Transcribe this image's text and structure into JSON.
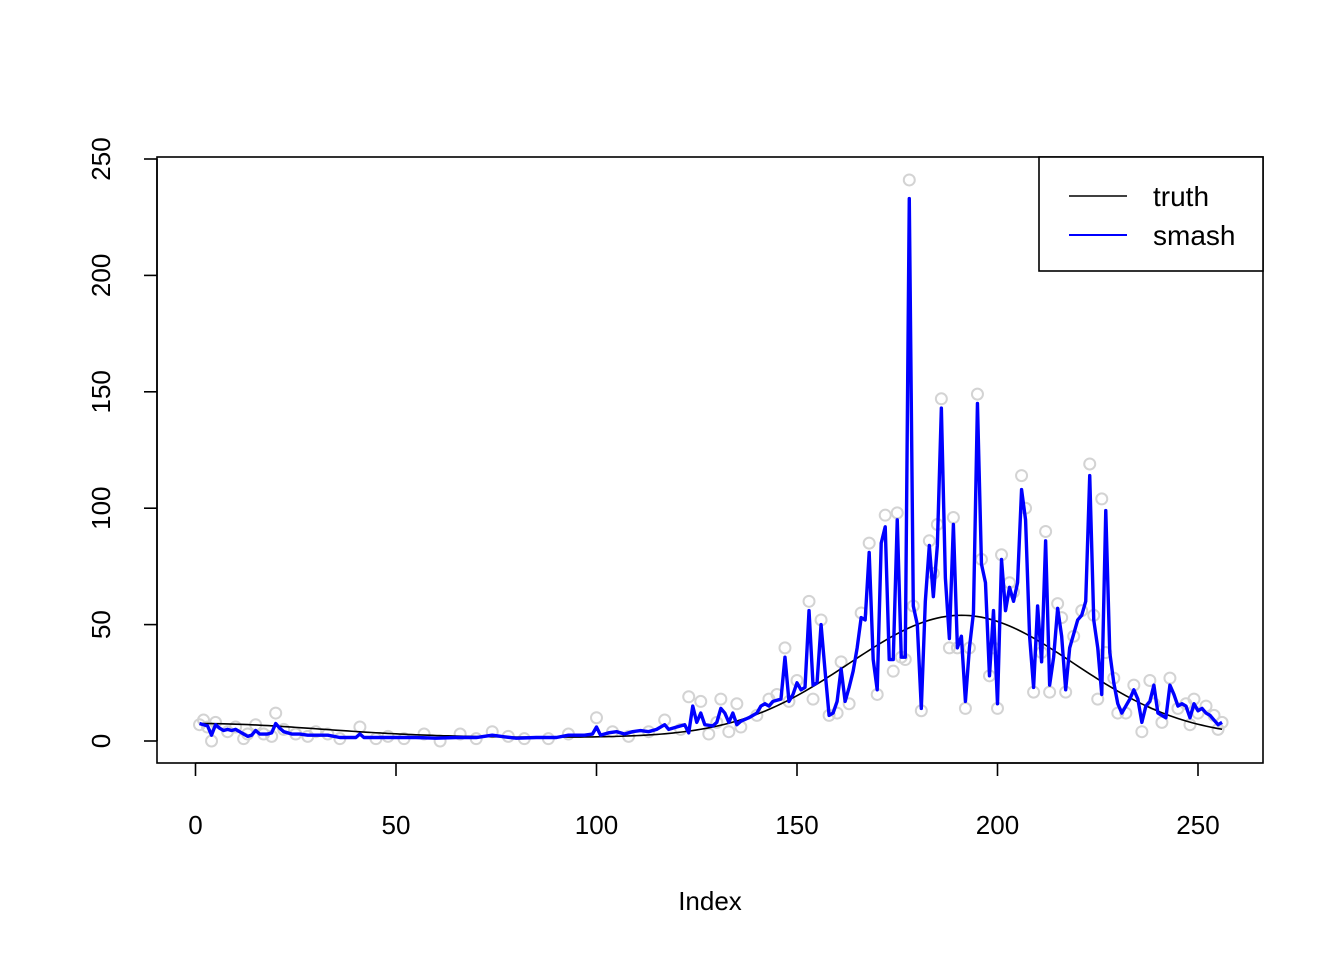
{
  "chart_data": {
    "type": "line",
    "title": "",
    "xlabel": "Index",
    "ylabel": "",
    "xlim": [
      1,
      256
    ],
    "ylim": [
      0,
      250
    ],
    "x_ticks": [
      0,
      50,
      100,
      150,
      200,
      250
    ],
    "y_ticks": [
      0,
      50,
      100,
      150,
      200,
      250
    ],
    "grid": false,
    "legend": {
      "position": "top-right",
      "entries": [
        {
          "label": "truth",
          "color": "#000000"
        },
        {
          "label": "smash",
          "color": "#0000ff"
        }
      ]
    },
    "truth": {
      "type": "gaussian-bump",
      "baseline_start": 7.5,
      "minimum_value": 1.5,
      "minimum_at": 80,
      "peak_value": 54,
      "peak_at": 191,
      "end_value": 8
    },
    "points_color": "#d3d3d3",
    "observed_points": [
      [
        1,
        7
      ],
      [
        2,
        9
      ],
      [
        3,
        6
      ],
      [
        4,
        0
      ],
      [
        5,
        8
      ],
      [
        8,
        4
      ],
      [
        10,
        6
      ],
      [
        12,
        1
      ],
      [
        13,
        3
      ],
      [
        15,
        7
      ],
      [
        17,
        3
      ],
      [
        19,
        2
      ],
      [
        20,
        12
      ],
      [
        22,
        5
      ],
      [
        25,
        3
      ],
      [
        28,
        2
      ],
      [
        30,
        4
      ],
      [
        33,
        3
      ],
      [
        36,
        1
      ],
      [
        41,
        6
      ],
      [
        45,
        1
      ],
      [
        48,
        2
      ],
      [
        52,
        1
      ],
      [
        57,
        3
      ],
      [
        61,
        0
      ],
      [
        66,
        3
      ],
      [
        70,
        1
      ],
      [
        74,
        4
      ],
      [
        78,
        2
      ],
      [
        82,
        1
      ],
      [
        88,
        1
      ],
      [
        93,
        3
      ],
      [
        100,
        10
      ],
      [
        104,
        4
      ],
      [
        108,
        2
      ],
      [
        113,
        4
      ],
      [
        117,
        9
      ],
      [
        121,
        5
      ],
      [
        123,
        19
      ],
      [
        126,
        17
      ],
      [
        128,
        3
      ],
      [
        130,
        8
      ],
      [
        131,
        18
      ],
      [
        133,
        4
      ],
      [
        135,
        16
      ],
      [
        136,
        6
      ],
      [
        140,
        11
      ],
      [
        143,
        18
      ],
      [
        145,
        20
      ],
      [
        147,
        40
      ],
      [
        148,
        17
      ],
      [
        150,
        26
      ],
      [
        153,
        60
      ],
      [
        154,
        18
      ],
      [
        156,
        52
      ],
      [
        158,
        11
      ],
      [
        160,
        12
      ],
      [
        161,
        34
      ],
      [
        163,
        16
      ],
      [
        166,
        55
      ],
      [
        168,
        85
      ],
      [
        170,
        20
      ],
      [
        172,
        97
      ],
      [
        174,
        30
      ],
      [
        175,
        98
      ],
      [
        176,
        36
      ],
      [
        177,
        35
      ],
      [
        178,
        241
      ],
      [
        179,
        58
      ],
      [
        181,
        13
      ],
      [
        183,
        86
      ],
      [
        184,
        72
      ],
      [
        185,
        93
      ],
      [
        186,
        147
      ],
      [
        188,
        40
      ],
      [
        189,
        96
      ],
      [
        190,
        40
      ],
      [
        192,
        14
      ],
      [
        193,
        40
      ],
      [
        195,
        149
      ],
      [
        196,
        78
      ],
      [
        198,
        28
      ],
      [
        199,
        40
      ],
      [
        200,
        14
      ],
      [
        201,
        80
      ],
      [
        203,
        68
      ],
      [
        204,
        64
      ],
      [
        206,
        114
      ],
      [
        207,
        100
      ],
      [
        209,
        21
      ],
      [
        211,
        38
      ],
      [
        212,
        90
      ],
      [
        213,
        21
      ],
      [
        215,
        59
      ],
      [
        216,
        53
      ],
      [
        217,
        21
      ],
      [
        219,
        45
      ],
      [
        221,
        56
      ],
      [
        223,
        119
      ],
      [
        224,
        54
      ],
      [
        225,
        18
      ],
      [
        226,
        104
      ],
      [
        227,
        38
      ],
      [
        229,
        27
      ],
      [
        230,
        12
      ],
      [
        232,
        12
      ],
      [
        234,
        24
      ],
      [
        236,
        4
      ],
      [
        238,
        26
      ],
      [
        239,
        16
      ],
      [
        241,
        8
      ],
      [
        243,
        27
      ],
      [
        245,
        14
      ],
      [
        247,
        16
      ],
      [
        248,
        7
      ],
      [
        249,
        18
      ],
      [
        250,
        12
      ],
      [
        252,
        15
      ],
      [
        254,
        11
      ],
      [
        255,
        5
      ],
      [
        256,
        8
      ]
    ],
    "smash_series": [
      [
        1,
        7.5
      ],
      [
        2,
        7
      ],
      [
        3,
        6.5
      ],
      [
        4,
        2.5
      ],
      [
        5,
        7
      ],
      [
        6,
        5.5
      ],
      [
        7,
        4.5
      ],
      [
        8,
        5
      ],
      [
        9,
        4.5
      ],
      [
        10,
        5
      ],
      [
        11,
        4
      ],
      [
        12,
        3
      ],
      [
        13,
        2
      ],
      [
        14,
        2.5
      ],
      [
        15,
        4.5
      ],
      [
        16,
        3
      ],
      [
        17,
        3
      ],
      [
        18,
        3
      ],
      [
        19,
        3.5
      ],
      [
        20,
        7.5
      ],
      [
        21,
        5.5
      ],
      [
        22,
        4
      ],
      [
        24,
        3
      ],
      [
        26,
        3
      ],
      [
        28,
        2.5
      ],
      [
        30,
        2.5
      ],
      [
        33,
        2.5
      ],
      [
        36,
        1.5
      ],
      [
        40,
        1.5
      ],
      [
        41,
        3
      ],
      [
        42,
        1.5
      ],
      [
        46,
        1.5
      ],
      [
        50,
        1.5
      ],
      [
        55,
        1.5
      ],
      [
        60,
        1.2
      ],
      [
        65,
        1.5
      ],
      [
        70,
        1.5
      ],
      [
        74,
        2.5
      ],
      [
        77,
        1.8
      ],
      [
        80,
        1.2
      ],
      [
        85,
        1.5
      ],
      [
        90,
        1.5
      ],
      [
        93,
        2.5
      ],
      [
        97,
        2.5
      ],
      [
        99,
        3
      ],
      [
        100,
        6
      ],
      [
        101,
        2.5
      ],
      [
        103,
        3.5
      ],
      [
        105,
        4
      ],
      [
        107,
        3
      ],
      [
        109,
        4
      ],
      [
        111,
        4.5
      ],
      [
        113,
        4
      ],
      [
        115,
        5
      ],
      [
        117,
        7
      ],
      [
        118,
        5
      ],
      [
        120,
        6
      ],
      [
        122,
        7
      ],
      [
        123,
        3.5
      ],
      [
        124,
        15
      ],
      [
        125,
        8
      ],
      [
        126,
        12
      ],
      [
        127,
        7
      ],
      [
        129,
        6.5
      ],
      [
        130,
        8
      ],
      [
        131,
        14
      ],
      [
        132,
        12
      ],
      [
        133,
        8
      ],
      [
        134,
        12
      ],
      [
        135,
        7
      ],
      [
        136,
        8.5
      ],
      [
        138,
        10
      ],
      [
        140,
        12
      ],
      [
        141,
        15
      ],
      [
        142,
        16
      ],
      [
        143,
        15
      ],
      [
        144,
        17
      ],
      [
        146,
        18
      ],
      [
        147,
        36
      ],
      [
        148,
        17
      ],
      [
        149,
        20
      ],
      [
        150,
        25
      ],
      [
        151,
        22
      ],
      [
        152,
        23
      ],
      [
        153,
        56
      ],
      [
        154,
        24
      ],
      [
        155,
        25
      ],
      [
        156,
        50
      ],
      [
        157,
        30
      ],
      [
        158,
        11
      ],
      [
        159,
        12
      ],
      [
        160,
        17
      ],
      [
        161,
        31
      ],
      [
        162,
        17
      ],
      [
        163,
        23
      ],
      [
        164,
        30
      ],
      [
        165,
        40
      ],
      [
        166,
        53
      ],
      [
        167,
        52
      ],
      [
        168,
        81
      ],
      [
        169,
        35
      ],
      [
        170,
        22
      ],
      [
        171,
        85
      ],
      [
        172,
        92
      ],
      [
        173,
        35
      ],
      [
        174,
        35
      ],
      [
        175,
        95
      ],
      [
        176,
        36
      ],
      [
        177,
        36
      ],
      [
        178,
        233
      ],
      [
        179,
        58
      ],
      [
        180,
        50
      ],
      [
        181,
        14
      ],
      [
        182,
        60
      ],
      [
        183,
        84
      ],
      [
        184,
        62
      ],
      [
        185,
        84
      ],
      [
        186,
        143
      ],
      [
        187,
        70
      ],
      [
        188,
        44
      ],
      [
        189,
        93
      ],
      [
        190,
        40
      ],
      [
        191,
        45
      ],
      [
        192,
        17
      ],
      [
        193,
        40
      ],
      [
        194,
        55
      ],
      [
        195,
        145
      ],
      [
        196,
        76
      ],
      [
        197,
        68
      ],
      [
        198,
        28
      ],
      [
        199,
        56
      ],
      [
        200,
        16
      ],
      [
        201,
        78
      ],
      [
        202,
        56
      ],
      [
        203,
        66
      ],
      [
        204,
        60
      ],
      [
        205,
        68
      ],
      [
        206,
        108
      ],
      [
        207,
        95
      ],
      [
        208,
        45
      ],
      [
        209,
        23
      ],
      [
        210,
        58
      ],
      [
        211,
        34
      ],
      [
        212,
        86
      ],
      [
        213,
        24
      ],
      [
        214,
        36
      ],
      [
        215,
        57
      ],
      [
        216,
        45
      ],
      [
        217,
        22
      ],
      [
        218,
        40
      ],
      [
        219,
        46
      ],
      [
        220,
        52
      ],
      [
        221,
        54
      ],
      [
        222,
        60
      ],
      [
        223,
        114
      ],
      [
        224,
        52
      ],
      [
        225,
        40
      ],
      [
        226,
        20
      ],
      [
        227,
        99
      ],
      [
        228,
        38
      ],
      [
        229,
        25
      ],
      [
        230,
        16
      ],
      [
        231,
        12
      ],
      [
        232,
        15
      ],
      [
        233,
        18
      ],
      [
        234,
        22
      ],
      [
        235,
        18
      ],
      [
        236,
        8
      ],
      [
        237,
        15
      ],
      [
        238,
        17
      ],
      [
        239,
        24
      ],
      [
        240,
        12
      ],
      [
        241,
        11
      ],
      [
        242,
        10
      ],
      [
        243,
        24
      ],
      [
        244,
        20
      ],
      [
        245,
        15
      ],
      [
        246,
        16
      ],
      [
        247,
        15
      ],
      [
        248,
        10
      ],
      [
        249,
        16
      ],
      [
        250,
        13
      ],
      [
        251,
        14
      ],
      [
        252,
        12
      ],
      [
        253,
        11
      ],
      [
        254,
        9
      ],
      [
        255,
        7
      ],
      [
        256,
        8
      ]
    ]
  }
}
